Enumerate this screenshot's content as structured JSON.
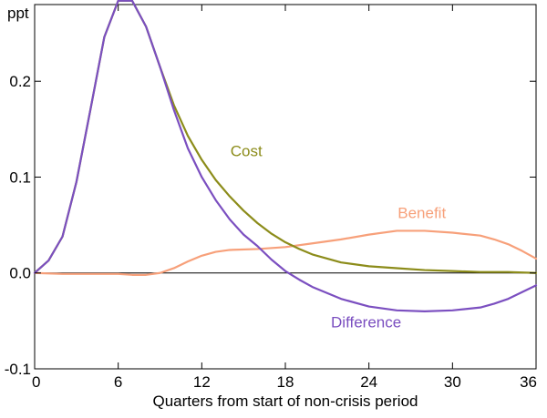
{
  "chart_data": {
    "type": "line",
    "title": "",
    "xlabel": "Quarters from start of non-crisis period",
    "ylabel": "ppt",
    "xlim": [
      0,
      36
    ],
    "ylim": [
      -0.1,
      0.28
    ],
    "xticks": [
      0,
      6,
      12,
      18,
      24,
      30,
      36
    ],
    "xtick_labels": [
      "0",
      "6",
      "12",
      "18",
      "24",
      "30",
      "36"
    ],
    "yticks": [
      -0.1,
      0.0,
      0.1,
      0.2
    ],
    "ytick_labels": [
      "-0.1",
      "0.0",
      "0.1",
      "0.2"
    ],
    "zero_line": true,
    "grid": false,
    "series": [
      {
        "name": "Cost",
        "color": "#8c8c1a",
        "points": [
          [
            0,
            0.0
          ],
          [
            1,
            0.013
          ],
          [
            2,
            0.038
          ],
          [
            3,
            0.095
          ],
          [
            4,
            0.17
          ],
          [
            5,
            0.246
          ],
          [
            6,
            0.284
          ],
          [
            7,
            0.284
          ],
          [
            8,
            0.257
          ],
          [
            9,
            0.215
          ],
          [
            10,
            0.175
          ],
          [
            11,
            0.143
          ],
          [
            12,
            0.118
          ],
          [
            13,
            0.097
          ],
          [
            14,
            0.08
          ],
          [
            15,
            0.065
          ],
          [
            16,
            0.052
          ],
          [
            17,
            0.041
          ],
          [
            18,
            0.032
          ],
          [
            19,
            0.025
          ],
          [
            20,
            0.019
          ],
          [
            22,
            0.011
          ],
          [
            24,
            0.007
          ],
          [
            26,
            0.005
          ],
          [
            28,
            0.003
          ],
          [
            30,
            0.002
          ],
          [
            32,
            0.001
          ],
          [
            34,
            0.001
          ],
          [
            36,
            0.0
          ]
        ]
      },
      {
        "name": "Benefit",
        "color": "#f7a07a",
        "points": [
          [
            0,
            0.0
          ],
          [
            2,
            -0.001
          ],
          [
            4,
            -0.001
          ],
          [
            6,
            -0.001
          ],
          [
            7,
            -0.002
          ],
          [
            8,
            -0.002
          ],
          [
            9,
            0.0
          ],
          [
            10,
            0.005
          ],
          [
            11,
            0.012
          ],
          [
            12,
            0.018
          ],
          [
            13,
            0.022
          ],
          [
            14,
            0.024
          ],
          [
            16,
            0.025
          ],
          [
            18,
            0.027
          ],
          [
            20,
            0.031
          ],
          [
            22,
            0.035
          ],
          [
            24,
            0.04
          ],
          [
            26,
            0.044
          ],
          [
            28,
            0.044
          ],
          [
            30,
            0.042
          ],
          [
            32,
            0.039
          ],
          [
            33,
            0.035
          ],
          [
            34,
            0.03
          ],
          [
            35,
            0.023
          ],
          [
            36,
            0.015
          ]
        ]
      },
      {
        "name": "Difference",
        "color": "#7b4fc0",
        "points": [
          [
            0,
            0.0
          ],
          [
            1,
            0.013
          ],
          [
            2,
            0.038
          ],
          [
            3,
            0.095
          ],
          [
            4,
            0.17
          ],
          [
            5,
            0.246
          ],
          [
            6,
            0.284
          ],
          [
            7,
            0.284
          ],
          [
            8,
            0.257
          ],
          [
            9,
            0.215
          ],
          [
            10,
            0.17
          ],
          [
            11,
            0.13
          ],
          [
            12,
            0.1
          ],
          [
            13,
            0.076
          ],
          [
            14,
            0.056
          ],
          [
            15,
            0.04
          ],
          [
            16,
            0.028
          ],
          [
            17,
            0.014
          ],
          [
            18,
            0.002
          ],
          [
            19,
            -0.007
          ],
          [
            20,
            -0.015
          ],
          [
            22,
            -0.027
          ],
          [
            24,
            -0.035
          ],
          [
            26,
            -0.039
          ],
          [
            28,
            -0.04
          ],
          [
            30,
            -0.039
          ],
          [
            32,
            -0.036
          ],
          [
            33,
            -0.032
          ],
          [
            34,
            -0.027
          ],
          [
            35,
            -0.02
          ],
          [
            36,
            -0.013
          ]
        ]
      }
    ],
    "annotations": [
      {
        "text": "Cost",
        "series": "Cost",
        "x": 15.2,
        "y": 0.122,
        "anchor": "middle"
      },
      {
        "text": "Benefit",
        "series": "Benefit",
        "x": 27.8,
        "y": 0.057,
        "anchor": "middle"
      },
      {
        "text": "Difference",
        "series": "Difference",
        "x": 23.8,
        "y": -0.057,
        "anchor": "middle"
      }
    ]
  },
  "colors": {
    "axis": "#000000",
    "background": "#ffffff"
  }
}
